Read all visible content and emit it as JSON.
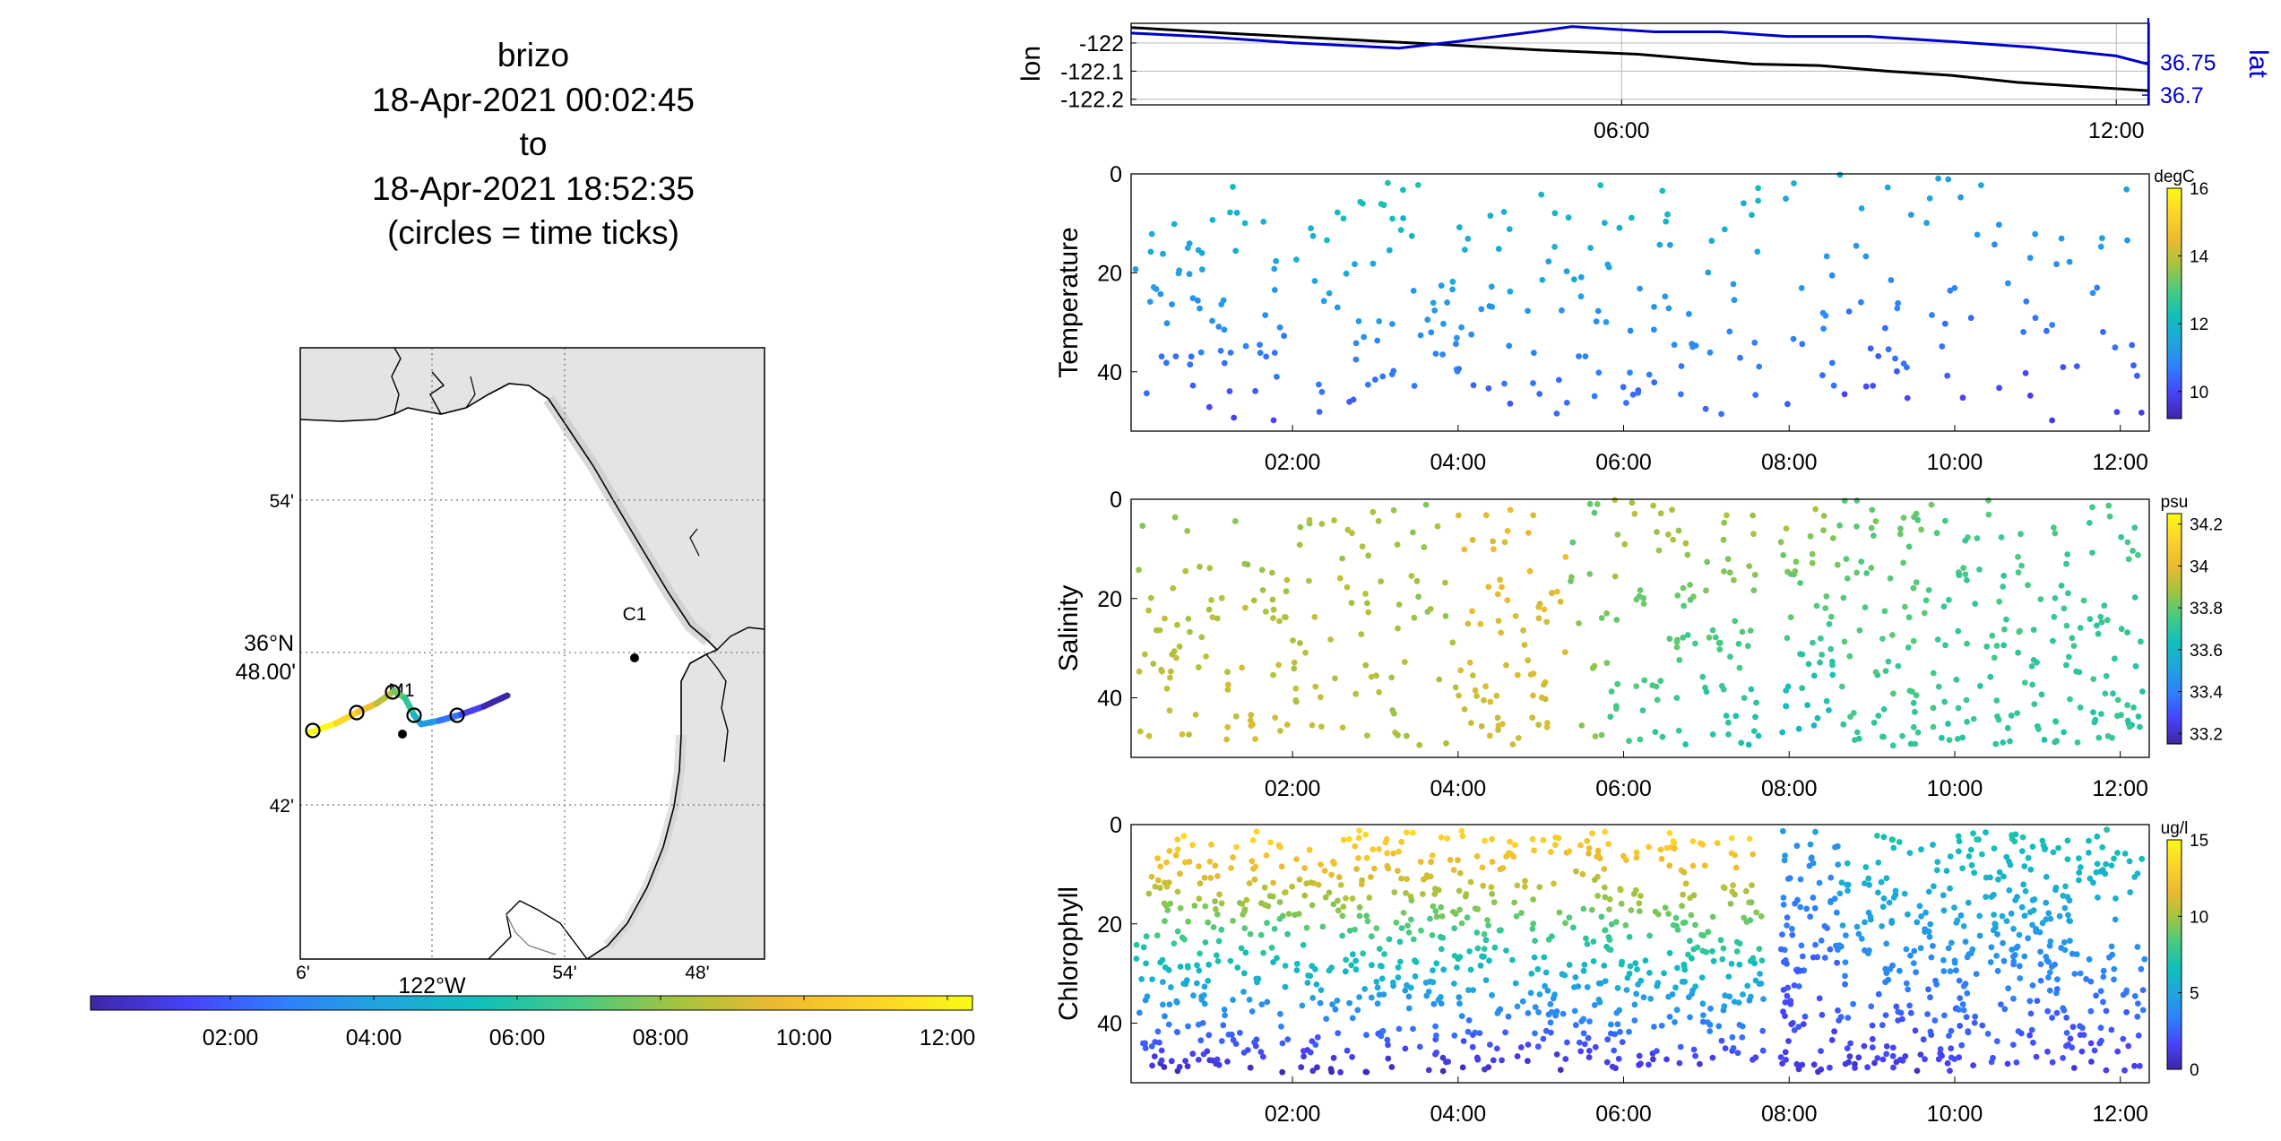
{
  "title": {
    "lines": [
      "brizo",
      "18-Apr-2021 00:02:45",
      "to",
      "18-Apr-2021 18:52:35",
      "(circles = time ticks)"
    ]
  },
  "map": {
    "lat_labels": [
      "54'",
      "36°N",
      "48.00'",
      "42'"
    ],
    "lon_labels": [
      "6'",
      "54'",
      "48'"
    ],
    "lon_main_label": "122°W",
    "station_labels": [
      "C1",
      "M1"
    ],
    "land_color": "#e4e4e4",
    "water_color": "#ffffff"
  },
  "time_colorbar": {
    "ticks": [
      "02:00",
      "04:00",
      "06:00",
      "08:00",
      "10:00",
      "12:00"
    ]
  },
  "colormap": [
    "#3e26a8",
    "#4743f8",
    "#2f80fb",
    "#1fa6dc",
    "#12bfb9",
    "#49ca82",
    "#a6c33e",
    "#edba30",
    "#fcd32a",
    "#f9fb15"
  ],
  "chart_data": [
    {
      "type": "line",
      "name": "position",
      "ylabel_left": "lon",
      "ylabel_right": "lat",
      "yticks_left": [
        "-122",
        "-122.1",
        "-122.2"
      ],
      "yticks_right": [
        "36.75",
        "36.7"
      ],
      "xticks": [
        "06:00",
        "12:00"
      ],
      "ylim_left": [
        -122.22,
        -121.93
      ],
      "ylim_right": [
        36.685,
        36.81
      ],
      "xlim_hours": [
        0.05,
        12.4
      ],
      "series": [
        {
          "name": "lon",
          "color": "#000000",
          "x_hours": [
            0.05,
            1.2,
            2.5,
            3.8,
            5.0,
            6.2,
            7.0,
            7.6,
            8.4,
            9.2,
            10.0,
            10.8,
            11.6,
            12.4
          ],
          "values": [
            -121.945,
            -121.965,
            -121.985,
            -122.005,
            -122.025,
            -122.04,
            -122.06,
            -122.075,
            -122.08,
            -122.1,
            -122.115,
            -122.14,
            -122.155,
            -122.17
          ]
        },
        {
          "name": "lat",
          "color": "#0000cc",
          "x_hours": [
            0.05,
            1.0,
            2.0,
            3.3,
            4.0,
            5.0,
            5.4,
            6.4,
            7.2,
            8.0,
            9.0,
            10.0,
            11.0,
            12.0,
            12.4
          ],
          "values": [
            36.795,
            36.789,
            36.78,
            36.772,
            36.782,
            36.798,
            36.805,
            36.797,
            36.797,
            36.79,
            36.79,
            36.782,
            36.773,
            36.76,
            36.747
          ]
        }
      ]
    },
    {
      "type": "scatter",
      "name": "temperature",
      "ylabel": "Temperature",
      "units": "degC",
      "yticks": [
        "0",
        "20",
        "40"
      ],
      "ylim": [
        0,
        52
      ],
      "xticks": [
        "02:00",
        "04:00",
        "06:00",
        "08:00",
        "10:00",
        "12:00"
      ],
      "colorbar_ticks": [
        "16",
        "14",
        "12",
        "10"
      ],
      "clim": [
        9.2,
        16
      ],
      "casts": [
        [
          0.1,
          0.9,
          49,
          5,
          10.2,
          11.9,
          28
        ],
        [
          0.9,
          2.0,
          50,
          2,
          10.0,
          12.2,
          34
        ],
        [
          2.0,
          3.1,
          50,
          4,
          10.2,
          12.3,
          30
        ],
        [
          3.1,
          4.0,
          49,
          0,
          10.3,
          12.4,
          30
        ],
        [
          4.0,
          5.3,
          50,
          3,
          10.2,
          12.2,
          32
        ],
        [
          5.3,
          5.8,
          48,
          1,
          10.4,
          12.3,
          16
        ],
        [
          5.8,
          6.7,
          49,
          2,
          10.3,
          12.1,
          26
        ],
        [
          6.7,
          7.7,
          49,
          2,
          10.3,
          12.0,
          22
        ],
        [
          7.9,
          8.6,
          50,
          0,
          10.2,
          11.7,
          14
        ],
        [
          8.6,
          9.8,
          50,
          0,
          10.0,
          11.7,
          26
        ],
        [
          9.8,
          10.8,
          50,
          0,
          9.8,
          11.6,
          16
        ],
        [
          10.8,
          12.3,
          50,
          2,
          9.7,
          11.8,
          28
        ]
      ]
    },
    {
      "type": "scatter",
      "name": "salinity",
      "ylabel": "Salinity",
      "units": "psu",
      "yticks": [
        "0",
        "20",
        "40"
      ],
      "ylim": [
        0,
        52
      ],
      "xticks": [
        "02:00",
        "04:00",
        "06:00",
        "08:00",
        "10:00",
        "12:00"
      ],
      "colorbar_ticks": [
        "34.2",
        "34",
        "33.8",
        "33.6",
        "33.4",
        "33.2"
      ],
      "clim": [
        33.15,
        34.25
      ],
      "casts": [
        [
          0.1,
          0.9,
          50,
          3,
          33.95,
          33.85,
          34
        ],
        [
          0.9,
          2.0,
          50,
          0,
          33.97,
          33.85,
          42
        ],
        [
          2.0,
          3.1,
          50,
          2,
          33.93,
          33.88,
          44
        ],
        [
          3.1,
          4.0,
          50,
          0,
          33.9,
          33.85,
          28
        ],
        [
          4.0,
          5.3,
          50,
          2,
          33.95,
          34.0,
          70
        ],
        [
          5.3,
          5.8,
          50,
          0,
          33.85,
          33.8,
          16
        ],
        [
          5.8,
          6.7,
          50,
          0,
          33.72,
          33.9,
          44
        ],
        [
          6.7,
          7.7,
          50,
          2,
          33.65,
          33.9,
          56
        ],
        [
          7.9,
          8.6,
          48,
          1,
          33.6,
          33.9,
          48
        ],
        [
          8.6,
          9.8,
          50,
          0,
          33.72,
          33.8,
          76
        ],
        [
          9.8,
          10.8,
          50,
          0,
          33.7,
          33.75,
          58
        ],
        [
          10.8,
          12.3,
          50,
          0,
          33.7,
          33.75,
          88
        ]
      ]
    },
    {
      "type": "scatter",
      "name": "chlorophyll",
      "ylabel": "Chlorophyll",
      "units": "ug/l",
      "yticks": [
        "0",
        "20",
        "40"
      ],
      "ylim": [
        0,
        52
      ],
      "xticks": [
        "02:00",
        "04:00",
        "06:00",
        "08:00",
        "10:00",
        "12:00"
      ],
      "colorbar_ticks": [
        "15",
        "10",
        "5",
        "0"
      ],
      "clim": [
        0,
        15
      ],
      "casts": [
        [
          0.1,
          0.9,
          50,
          2,
          0.6,
          13.5,
          95
        ],
        [
          0.9,
          2.0,
          50,
          1,
          0.5,
          13.8,
          120
        ],
        [
          2.0,
          3.1,
          50,
          1,
          0.5,
          13.8,
          120
        ],
        [
          3.1,
          4.0,
          50,
          1,
          0.5,
          13.6,
          105
        ],
        [
          4.0,
          5.3,
          50,
          1,
          0.5,
          13.6,
          140
        ],
        [
          5.3,
          5.8,
          50,
          1,
          0.6,
          13.0,
          60
        ],
        [
          5.8,
          6.7,
          50,
          1,
          0.8,
          13.5,
          100
        ],
        [
          6.7,
          7.7,
          50,
          1,
          0.9,
          13.6,
          115
        ],
        [
          7.9,
          8.6,
          50,
          1,
          1.2,
          4.5,
          95
        ],
        [
          8.6,
          9.8,
          50,
          1,
          1.0,
          7.0,
          135
        ],
        [
          9.8,
          10.8,
          50,
          1,
          1.5,
          7.0,
          130
        ],
        [
          10.8,
          12.3,
          50,
          1,
          1.2,
          7.0,
          170
        ]
      ]
    }
  ]
}
